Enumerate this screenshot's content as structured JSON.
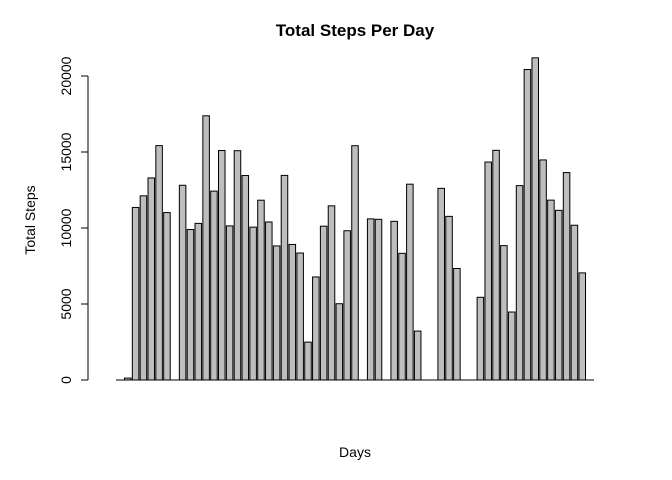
{
  "chart_data": {
    "type": "bar",
    "title": "Total Steps Per Day",
    "xlabel": "Days",
    "ylabel": "Total Steps",
    "ylim": [
      0,
      22000
    ],
    "yticks": [
      0,
      5000,
      10000,
      15000,
      20000
    ],
    "bar_color": "#bebebe",
    "values": [
      0,
      126,
      11352,
      12116,
      13294,
      15420,
      11015,
      0,
      12811,
      9900,
      10304,
      17382,
      12426,
      15098,
      10139,
      15084,
      13452,
      10056,
      11829,
      10395,
      8821,
      13460,
      8918,
      8355,
      2492,
      6778,
      10119,
      11458,
      5018,
      9819,
      15414,
      0,
      10600,
      10571,
      0,
      10439,
      8334,
      12883,
      3219,
      0,
      0,
      12608,
      10765,
      7336,
      0,
      0,
      5441,
      14339,
      15110,
      8841,
      4472,
      12787,
      20427,
      21194,
      14478,
      11834,
      11162,
      13646,
      10183,
      7047,
      0
    ]
  }
}
